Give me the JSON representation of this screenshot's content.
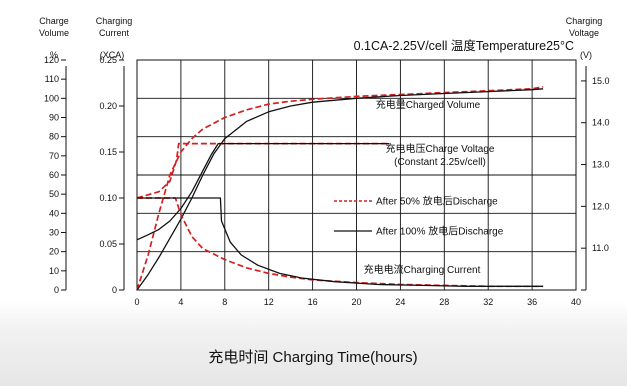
{
  "chart_data": {
    "type": "line",
    "title": "0.1CA-2.25V/cell   温度Temperature25°C",
    "xlabel": "充电时间 Charging Time(hours)",
    "xlim": [
      0,
      40
    ],
    "x_ticks": [
      0,
      4,
      8,
      12,
      16,
      20,
      24,
      28,
      32,
      36,
      40
    ],
    "axes": {
      "volume": {
        "header": [
          "Charge",
          "Volume"
        ],
        "unit": "%",
        "range": [
          0,
          120
        ],
        "ticks": [
          0,
          10,
          20,
          30,
          40,
          50,
          60,
          70,
          80,
          90,
          100,
          110,
          120
        ]
      },
      "current": {
        "header": [
          "Charging",
          "Current"
        ],
        "unit": "(XCA)",
        "range": [
          0,
          0.25
        ],
        "ticks": [
          0,
          0.05,
          0.1,
          0.15,
          0.2,
          0.25
        ],
        "tick_labels": [
          "0",
          "0.05",
          "0.10",
          "0.15",
          "0.20",
          "0.25"
        ]
      },
      "voltage": {
        "header": [
          "Charging",
          "Voltage"
        ],
        "unit": "(V)",
        "range": [
          10.0,
          15.5
        ],
        "ticks": [
          11.0,
          12.0,
          13.0,
          14.0,
          15.0
        ],
        "tick_labels": [
          "11.0",
          "12.0",
          "13.0",
          "14.0",
          "15.0"
        ]
      }
    },
    "grid": true,
    "legend": {
      "position": "right-center",
      "entries": [
        {
          "label": "After 50% 放电后Discharge",
          "style": "dashed",
          "color": "#d42020"
        },
        {
          "label": "After 100% 放电后Discharge",
          "style": "solid",
          "color": "#111111"
        }
      ]
    },
    "curve_labels": [
      {
        "text": "充电量Charged Volume",
        "curve": "volume"
      },
      {
        "text": "充电电压Charge Voltage",
        "curve": "voltage"
      },
      {
        "text": "(Constant 2.25v/cell)",
        "curve": "voltage"
      },
      {
        "text": "充电电流Charging Current",
        "curve": "current"
      }
    ],
    "series": [
      {
        "name": "After 50% 放电后Discharge",
        "quantity": "volume",
        "axis": "volume",
        "style": "dashed",
        "color": "#d42020",
        "x": [
          0,
          1,
          2,
          3,
          4,
          5,
          6,
          8,
          10,
          12,
          14,
          16,
          20,
          24,
          28,
          32,
          36,
          37
        ],
        "y": [
          0,
          18,
          40,
          60,
          72,
          79,
          84,
          90,
          94,
          97,
          98.5,
          99.5,
          101,
          102,
          103,
          104,
          105,
          106
        ]
      },
      {
        "name": "After 100% 放电后Discharge",
        "quantity": "volume",
        "axis": "volume",
        "style": "solid",
        "color": "#111111",
        "x": [
          0,
          1,
          2,
          3,
          4,
          5,
          6,
          7,
          8,
          10,
          12,
          14,
          16,
          20,
          24,
          28,
          32,
          36,
          37
        ],
        "y": [
          0,
          8,
          17,
          27,
          37,
          48,
          60,
          71,
          79,
          88,
          93,
          96,
          98,
          100,
          101.5,
          102.5,
          103.5,
          104.5,
          105
        ]
      },
      {
        "name": "After 50% 放电后Discharge",
        "quantity": "voltage",
        "axis": "voltage",
        "style": "dashed",
        "color": "#d42020",
        "x": [
          0,
          2,
          3,
          3.6,
          3.8,
          23
        ],
        "y": [
          12.2,
          12.35,
          12.6,
          13.1,
          13.5,
          13.5
        ]
      },
      {
        "name": "After 100% 放电后Discharge",
        "quantity": "voltage",
        "axis": "voltage",
        "style": "solid",
        "color": "#111111",
        "x": [
          0,
          1,
          2,
          3,
          4,
          5,
          6,
          6.8,
          7.4,
          23
        ],
        "y": [
          11.2,
          11.32,
          11.45,
          11.65,
          11.95,
          12.35,
          12.85,
          13.25,
          13.5,
          13.5
        ]
      },
      {
        "name": "After 50% 放电后Discharge",
        "quantity": "current",
        "axis": "current",
        "style": "dashed",
        "color": "#d42020",
        "x": [
          0,
          3.5,
          4,
          5,
          6,
          8,
          10,
          12,
          14,
          16,
          20,
          24,
          28,
          32,
          36,
          37
        ],
        "y": [
          0.1,
          0.1,
          0.082,
          0.058,
          0.045,
          0.033,
          0.024,
          0.018,
          0.014,
          0.011,
          0.008,
          0.006,
          0.005,
          0.004,
          0.004,
          0.004
        ]
      },
      {
        "name": "After 100% 放电后Discharge",
        "quantity": "current",
        "axis": "current",
        "style": "solid",
        "color": "#111111",
        "x": [
          0,
          7.6,
          7.7,
          8.5,
          9.5,
          11,
          13,
          15,
          18,
          22,
          26,
          30,
          34,
          37
        ],
        "y": [
          0.1,
          0.1,
          0.075,
          0.052,
          0.038,
          0.027,
          0.018,
          0.013,
          0.009,
          0.006,
          0.005,
          0.004,
          0.004,
          0.004
        ]
      }
    ]
  }
}
